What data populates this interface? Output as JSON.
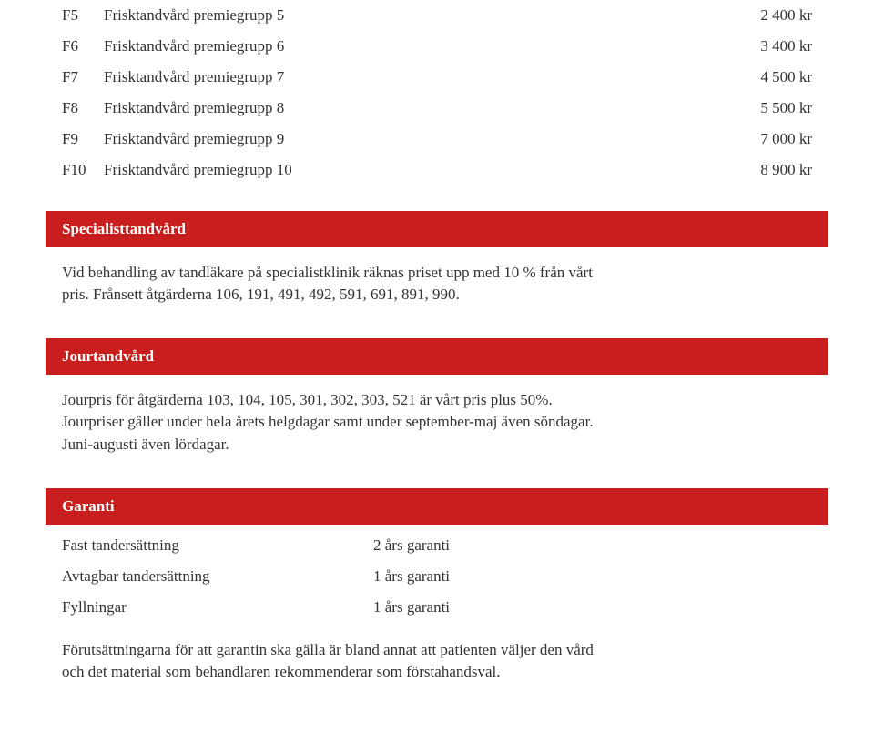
{
  "priceRows": [
    {
      "code": "F5",
      "desc": "Frisktandvård premiegrupp 5",
      "price": "2 400 kr"
    },
    {
      "code": "F6",
      "desc": "Frisktandvård premiegrupp 6",
      "price": "3 400 kr"
    },
    {
      "code": "F7",
      "desc": "Frisktandvård premiegrupp 7",
      "price": "4 500 kr"
    },
    {
      "code": "F8",
      "desc": "Frisktandvård premiegrupp 8",
      "price": "5 500 kr"
    },
    {
      "code": "F9",
      "desc": "Frisktandvård premiegrupp 9",
      "price": "7 000 kr"
    },
    {
      "code": "F10",
      "desc": "Frisktandvård premiegrupp 10",
      "price": "8 900 kr"
    }
  ],
  "sections": {
    "specialist": {
      "title": "Specialisttandvård",
      "body": "Vid behandling av tandläkare på specialistklinik räknas priset upp med 10 % från vårt pris. Frånsett åtgärderna 106, 191, 491, 492, 591, 691, 891, 990."
    },
    "jour": {
      "title": "Jourtandvård",
      "body": "Jourpris för åtgärderna 103, 104, 105, 301, 302, 303, 521 är vårt pris plus 50%. Jourpriser gäller under hela årets helgdagar samt under september-maj även söndagar. Juni-augusti även lördagar."
    },
    "garanti": {
      "title": "Garanti",
      "footnote": "Förutsättningarna för att garantin ska gälla är bland annat att patienten väljer den vård och det material som behandlaren rekommenderar som förstahandsval."
    }
  },
  "guaranteeRows": [
    {
      "label": "Fast tandersättning",
      "value": "2 års garanti"
    },
    {
      "label": "Avtagbar tandersättning",
      "value": "1 års garanti"
    },
    {
      "label": "Fyllningar",
      "value": "1 års garanti"
    }
  ],
  "colors": {
    "headerBg": "#c81e1e",
    "headerText": "#ffffff",
    "bodyText": "#333333",
    "pageBg": "#ffffff"
  }
}
